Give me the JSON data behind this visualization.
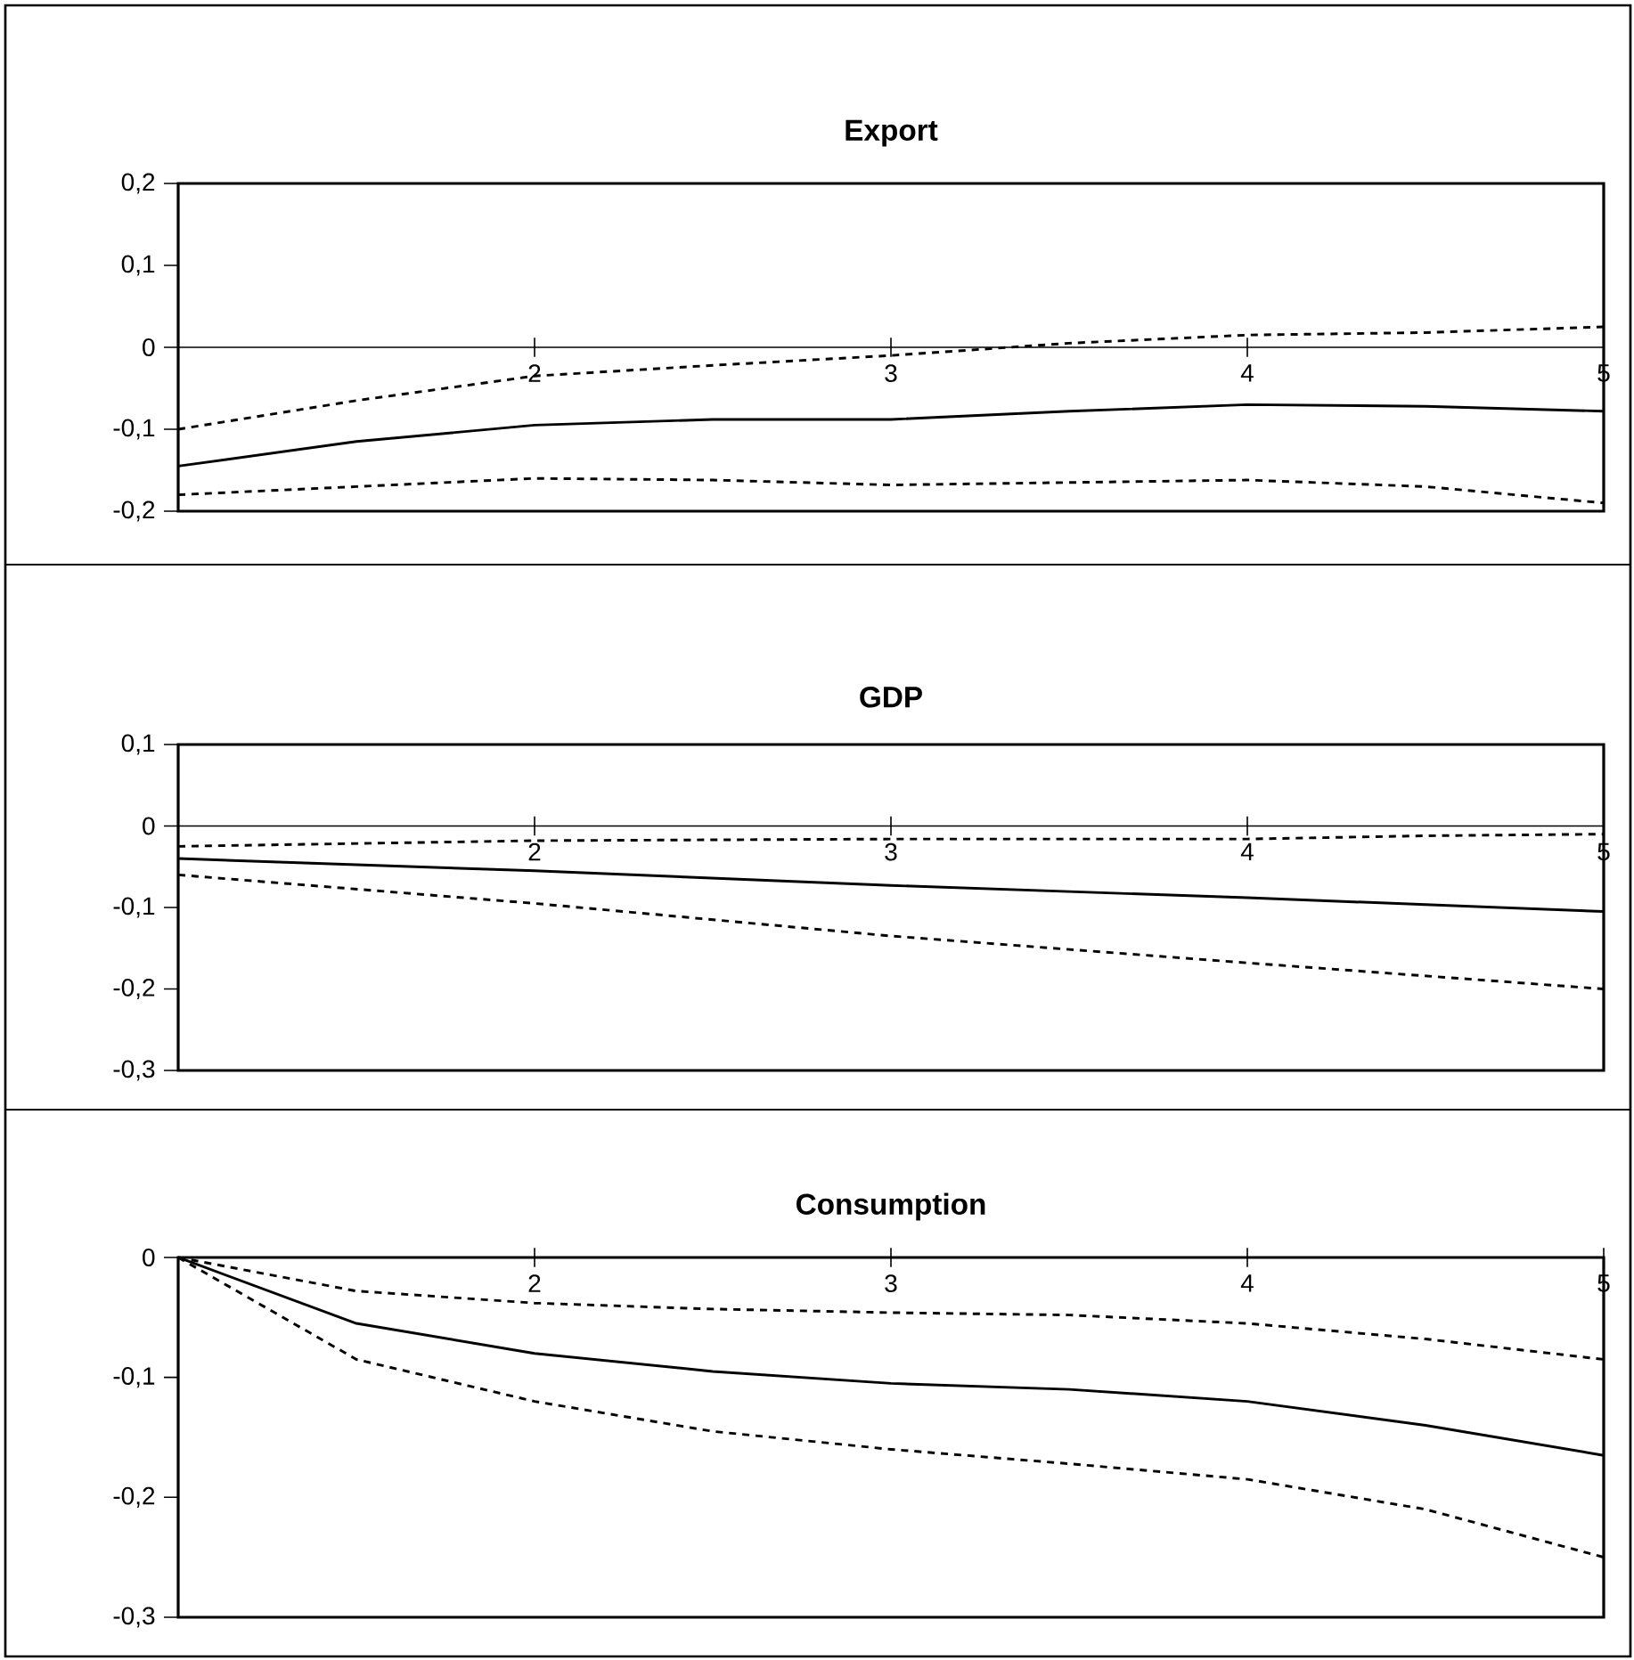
{
  "chart_data": [
    {
      "type": "line",
      "title": "Export",
      "xlim": [
        1,
        5
      ],
      "xticks": [
        2,
        3,
        4,
        5
      ],
      "ylim": [
        -0.2,
        0.2
      ],
      "yticks": [
        {
          "value": -0.2,
          "label": "-0,2"
        },
        {
          "value": -0.1,
          "label": "-0,1"
        },
        0,
        {
          "value": 0.1,
          "label": "0,1"
        },
        {
          "value": 0.2,
          "label": "0,2"
        }
      ],
      "series": [
        {
          "color": "#000000",
          "line_style": "dashed",
          "x": [
            1,
            1.5,
            2,
            2.5,
            3,
            3.5,
            4,
            4.5,
            5
          ],
          "values": [
            -0.1,
            -0.065,
            -0.035,
            -0.022,
            -0.01,
            0.005,
            0.015,
            0.018,
            0.025
          ]
        },
        {
          "color": "#000000",
          "line_style": "solid",
          "x": [
            1,
            1.5,
            2,
            2.5,
            3,
            3.5,
            4,
            4.5,
            5
          ],
          "values": [
            -0.145,
            -0.115,
            -0.095,
            -0.088,
            -0.088,
            -0.078,
            -0.07,
            -0.072,
            -0.078
          ]
        },
        {
          "color": "#000000",
          "line_style": "dashed",
          "x": [
            1,
            1.5,
            2,
            2.5,
            3,
            3.5,
            4,
            4.5,
            5
          ],
          "values": [
            -0.18,
            -0.17,
            -0.16,
            -0.162,
            -0.168,
            -0.165,
            -0.162,
            -0.17,
            -0.19
          ]
        }
      ]
    },
    {
      "type": "line",
      "title": "GDP",
      "xlim": [
        1,
        5
      ],
      "xticks": [
        2,
        3,
        4,
        5
      ],
      "ylim": [
        -0.3,
        0.1
      ],
      "yticks": [
        {
          "value": -0.3,
          "label": "-0,3"
        },
        {
          "value": -0.2,
          "label": "-0,2"
        },
        {
          "value": -0.1,
          "label": "-0,1"
        },
        0,
        {
          "value": 0.1,
          "label": "0,1"
        }
      ],
      "series": [
        {
          "color": "#000000",
          "line_style": "dashed",
          "x": [
            1,
            2,
            3,
            4,
            4.5,
            5
          ],
          "values": [
            -0.025,
            -0.018,
            -0.016,
            -0.016,
            -0.012,
            -0.01
          ]
        },
        {
          "color": "#000000",
          "line_style": "solid",
          "x": [
            1,
            2,
            3,
            4,
            5
          ],
          "values": [
            -0.04,
            -0.055,
            -0.073,
            -0.088,
            -0.105
          ]
        },
        {
          "color": "#000000",
          "line_style": "dashed",
          "x": [
            1,
            2,
            3,
            4,
            5
          ],
          "values": [
            -0.06,
            -0.095,
            -0.135,
            -0.168,
            -0.2
          ]
        }
      ]
    },
    {
      "type": "line",
      "title": "Consumption",
      "xlim": [
        1,
        5
      ],
      "xticks": [
        2,
        3,
        4,
        5
      ],
      "ylim": [
        -0.3,
        0
      ],
      "yticks": [
        {
          "value": -0.3,
          "label": "-0,3"
        },
        {
          "value": -0.2,
          "label": "-0,2"
        },
        {
          "value": -0.1,
          "label": "-0,1"
        },
        0
      ],
      "series": [
        {
          "color": "#000000",
          "line_style": "dashed",
          "x": [
            1,
            1.5,
            2,
            2.5,
            3,
            3.5,
            4,
            4.5,
            5
          ],
          "values": [
            0,
            -0.028,
            -0.038,
            -0.043,
            -0.046,
            -0.048,
            -0.055,
            -0.068,
            -0.085
          ]
        },
        {
          "color": "#000000",
          "line_style": "solid",
          "x": [
            1,
            1.5,
            2,
            2.5,
            3,
            3.5,
            4,
            4.5,
            5
          ],
          "values": [
            0,
            -0.055,
            -0.08,
            -0.095,
            -0.105,
            -0.11,
            -0.12,
            -0.14,
            -0.165
          ]
        },
        {
          "color": "#000000",
          "line_style": "dashed",
          "x": [
            1,
            1.5,
            2,
            2.5,
            3,
            3.5,
            4,
            4.5,
            5
          ],
          "values": [
            0,
            -0.085,
            -0.12,
            -0.145,
            -0.16,
            -0.172,
            -0.185,
            -0.21,
            -0.25
          ]
        }
      ]
    }
  ]
}
